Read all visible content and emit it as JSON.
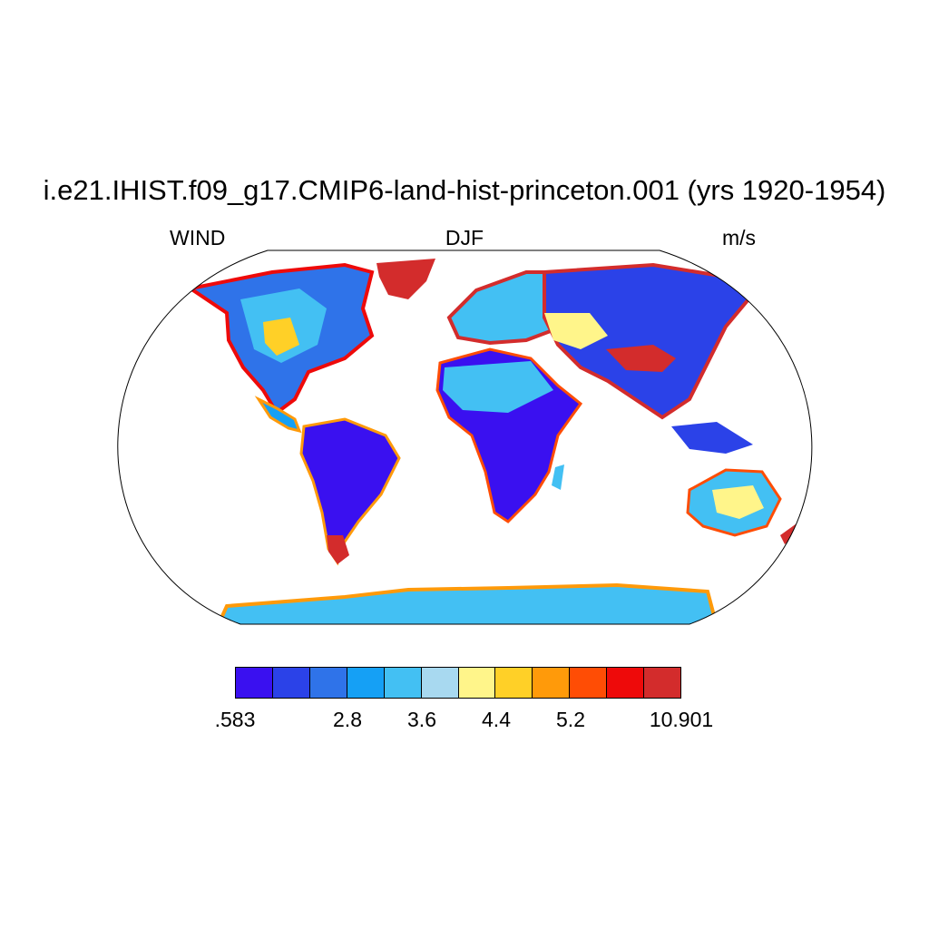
{
  "title": "i.e21.IHIST.f09_g17.CMIP6-land-hist-princeton.001 (yrs 1920-1954)",
  "left_label": "WIND",
  "center_label": "DJF",
  "right_label": "m/s",
  "colorbar": {
    "colors": [
      "#3a10f0",
      "#2b42e8",
      "#2f73e9",
      "#15a0f5",
      "#43c0f3",
      "#a8d9f0",
      "#fff58a",
      "#ffd027",
      "#ff9a0a",
      "#ff4d05",
      "#ee0a0a",
      "#d32c2c"
    ],
    "labels": [
      ".583",
      "2.8",
      "3.6",
      "4.4",
      "5.2",
      "10.901"
    ]
  },
  "colors": {
    "low_wind": "#3a10f0",
    "mid_wind": "#43c0f3",
    "high_wind": "#d32c2c",
    "outline": "#000000"
  }
}
